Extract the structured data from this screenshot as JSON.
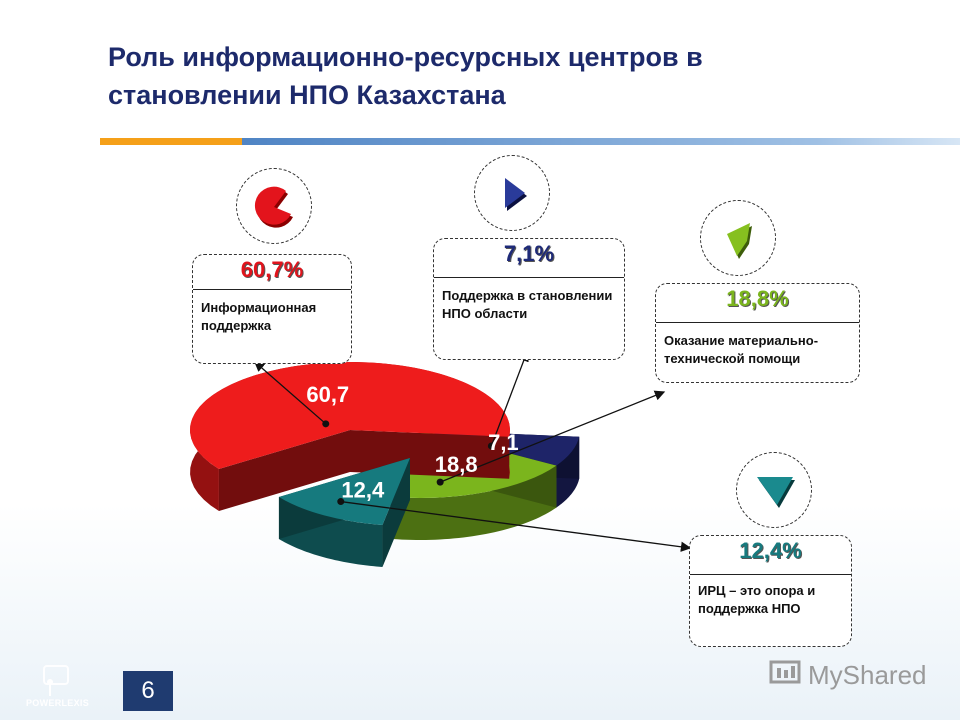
{
  "title": "Роль информационно-ресурсных центров в становлении НПО Казахстана",
  "page_number": "6",
  "brand": {
    "name": "POWERLEXIS",
    "watermark": "MyShared"
  },
  "colors": {
    "red": "#ee1c1c",
    "navy": "#1e2468",
    "green": "#7bb51d",
    "teal": "#167a7e",
    "title": "#1d2a6b",
    "orange": "#f5a019"
  },
  "cards": [
    {
      "pct": "60,7%",
      "desc": "Информационная поддержка",
      "color": "#e0141c"
    },
    {
      "pct": "7,1%",
      "desc": "Поддержка в становлении НПО области",
      "color": "#1e2a78"
    },
    {
      "pct": "18,8%",
      "desc": "Оказание материально-технической помощи",
      "color": "#7bb51d"
    },
    {
      "pct": "12,4%",
      "desc": "ИРЦ – это опора и поддержка НПО",
      "color": "#177a7e"
    }
  ],
  "chart_data": {
    "type": "pie",
    "title": "",
    "categories": [
      "Информационная поддержка",
      "Поддержка в становлении НПО области",
      "Оказание материально-технической помощи",
      "ИРЦ – это опора и поддержка НПО"
    ],
    "values": [
      60.7,
      7.1,
      18.8,
      12.4
    ],
    "labels": [
      "60,7",
      "7,1",
      "18,8",
      "12,4"
    ],
    "colors": [
      "#ee1c1c",
      "#1e2468",
      "#7bb51d",
      "#167a7e"
    ],
    "exploded": true,
    "three_d": true
  }
}
